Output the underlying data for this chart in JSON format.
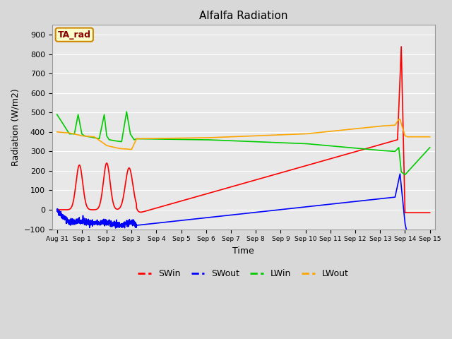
{
  "title": "Alfalfa Radiation",
  "xlabel": "Time",
  "ylabel": "Radiation (W/m2)",
  "ylim": [
    -100,
    950
  ],
  "yticks": [
    -100,
    0,
    100,
    200,
    300,
    400,
    500,
    600,
    700,
    800,
    900
  ],
  "fig_facecolor": "#d8d8d8",
  "plot_facecolor": "#e8e8e8",
  "legend_label": "TA_rad",
  "series_colors": {
    "SWin": "#ff0000",
    "SWout": "#0000ff",
    "LWin": "#00cc00",
    "LWout": "#ffa500"
  },
  "xtick_labels": [
    "Aug 31",
    "Sep 1",
    "Sep 2",
    "Sep 3",
    "Sep 4",
    "Sep 5",
    "Sep 6",
    "Sep 7",
    "Sep 8",
    "Sep 9",
    "Sep 10",
    "Sep 11",
    "Sep 12",
    "Sep 13",
    "Sep 14",
    "Sep 15"
  ],
  "grid_color": "#ffffff",
  "linewidth": 1.2
}
